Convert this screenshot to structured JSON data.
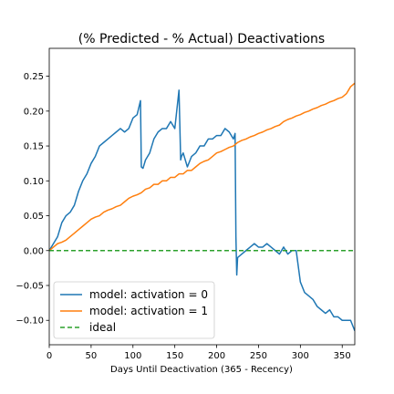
{
  "chart_data": {
    "type": "line",
    "title": "(% Predicted - % Actual) Deactivations",
    "xlabel": "Days Until Deactivation (365 - Recency)",
    "ylabel": "",
    "xlim": [
      0,
      365
    ],
    "ylim": [
      -0.135,
      0.29
    ],
    "xticks": [
      0,
      50,
      100,
      150,
      200,
      250,
      300,
      350
    ],
    "yticks": [
      -0.1,
      -0.05,
      0.0,
      0.05,
      0.1,
      0.15,
      0.2,
      0.25
    ],
    "ytick_labels": [
      "−0.10",
      "−0.05",
      "0.00",
      "0.05",
      "0.10",
      "0.15",
      "0.20",
      "0.25"
    ],
    "grid": false,
    "legend_position": "lower-left",
    "series": [
      {
        "name": "model: activation = 0",
        "color": "#1f77b4",
        "style": "solid",
        "x": [
          0,
          5,
          10,
          15,
          20,
          25,
          30,
          35,
          40,
          45,
          50,
          55,
          60,
          65,
          70,
          75,
          80,
          85,
          90,
          95,
          100,
          105,
          109,
          110,
          112,
          115,
          120,
          125,
          130,
          135,
          140,
          145,
          150,
          155,
          157,
          158,
          160,
          165,
          170,
          175,
          180,
          185,
          190,
          195,
          200,
          205,
          210,
          215,
          220,
          222,
          223,
          224,
          225,
          230,
          235,
          240,
          245,
          250,
          255,
          260,
          265,
          270,
          275,
          280,
          285,
          290,
          295,
          300,
          305,
          310,
          315,
          320,
          325,
          330,
          335,
          340,
          345,
          350,
          355,
          360,
          365
        ],
        "y": [
          0.0,
          0.01,
          0.02,
          0.04,
          0.05,
          0.055,
          0.065,
          0.085,
          0.1,
          0.11,
          0.125,
          0.135,
          0.15,
          0.155,
          0.16,
          0.165,
          0.17,
          0.175,
          0.17,
          0.175,
          0.19,
          0.195,
          0.215,
          0.12,
          0.118,
          0.13,
          0.14,
          0.16,
          0.17,
          0.175,
          0.175,
          0.185,
          0.175,
          0.23,
          0.13,
          0.135,
          0.14,
          0.12,
          0.135,
          0.14,
          0.15,
          0.15,
          0.16,
          0.16,
          0.165,
          0.165,
          0.175,
          0.17,
          0.16,
          0.168,
          0.02,
          -0.035,
          -0.01,
          -0.005,
          0.0,
          0.005,
          0.01,
          0.005,
          0.005,
          0.01,
          0.005,
          0.0,
          -0.005,
          0.005,
          -0.005,
          0.0,
          0.0,
          -0.045,
          -0.06,
          -0.065,
          -0.07,
          -0.08,
          -0.085,
          -0.09,
          -0.085,
          -0.095,
          -0.095,
          -0.1,
          -0.1,
          -0.1,
          -0.115
        ]
      },
      {
        "name": "model: activation = 1",
        "color": "#ff7f0e",
        "style": "solid",
        "x": [
          0,
          5,
          10,
          15,
          20,
          25,
          30,
          35,
          40,
          45,
          50,
          55,
          60,
          65,
          70,
          75,
          80,
          85,
          90,
          95,
          100,
          105,
          110,
          115,
          120,
          125,
          130,
          135,
          140,
          145,
          150,
          155,
          160,
          165,
          170,
          175,
          180,
          185,
          190,
          195,
          200,
          205,
          210,
          215,
          220,
          225,
          230,
          235,
          240,
          245,
          250,
          255,
          260,
          265,
          270,
          275,
          280,
          285,
          290,
          295,
          300,
          305,
          310,
          315,
          320,
          325,
          330,
          335,
          340,
          345,
          350,
          355,
          360,
          365
        ],
        "y": [
          0.0,
          0.005,
          0.01,
          0.012,
          0.015,
          0.02,
          0.025,
          0.03,
          0.035,
          0.04,
          0.045,
          0.048,
          0.05,
          0.055,
          0.058,
          0.06,
          0.063,
          0.065,
          0.07,
          0.075,
          0.078,
          0.08,
          0.083,
          0.088,
          0.09,
          0.095,
          0.095,
          0.1,
          0.1,
          0.105,
          0.105,
          0.11,
          0.11,
          0.115,
          0.115,
          0.12,
          0.125,
          0.128,
          0.13,
          0.135,
          0.14,
          0.142,
          0.145,
          0.148,
          0.15,
          0.155,
          0.158,
          0.16,
          0.163,
          0.165,
          0.168,
          0.17,
          0.173,
          0.175,
          0.178,
          0.18,
          0.185,
          0.188,
          0.19,
          0.193,
          0.195,
          0.198,
          0.2,
          0.203,
          0.205,
          0.208,
          0.21,
          0.213,
          0.215,
          0.218,
          0.22,
          0.225,
          0.235,
          0.24
        ]
      },
      {
        "name": "ideal",
        "color": "#2ca02c",
        "style": "dashed",
        "x": [
          0,
          365
        ],
        "y": [
          0.0,
          0.0
        ]
      }
    ]
  }
}
